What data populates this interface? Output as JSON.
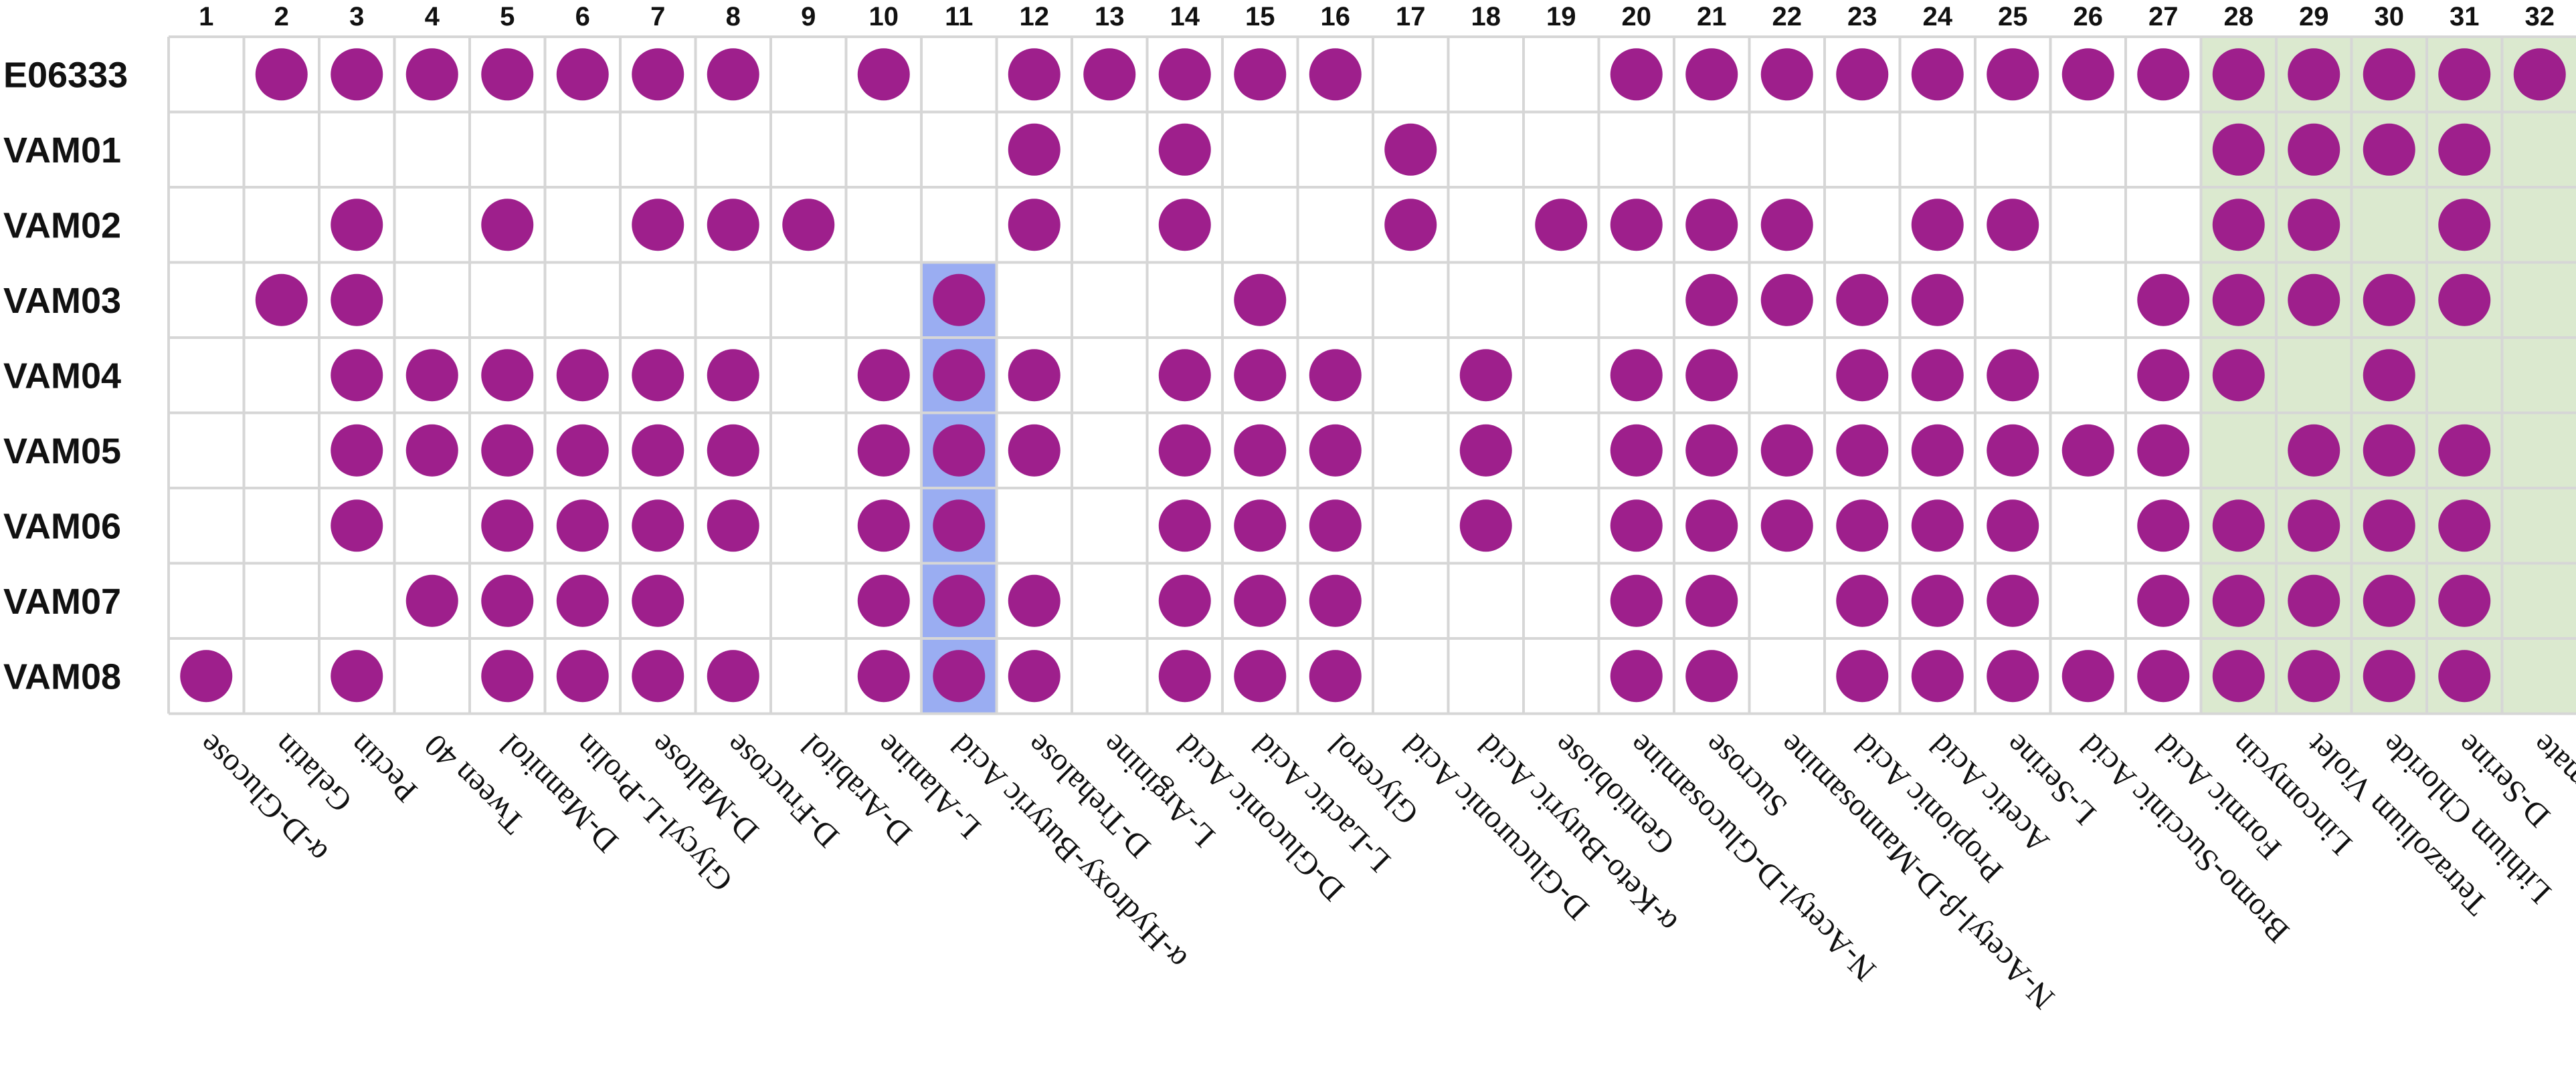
{
  "colors": {
    "dot": "#9e1f8c",
    "grid": "#d6d6d6",
    "column_highlight": "#9aadf2",
    "region_highlight": "#dbe9cf",
    "text": "#111111"
  },
  "chart_data": {
    "type": "table",
    "title": "",
    "column_numbers": [
      "1",
      "2",
      "3",
      "4",
      "5",
      "6",
      "7",
      "8",
      "9",
      "10",
      "11",
      "12",
      "13",
      "14",
      "15",
      "16",
      "17",
      "18",
      "19",
      "20",
      "21",
      "22",
      "23",
      "24",
      "25",
      "26",
      "27",
      "28",
      "29",
      "30",
      "31",
      "32"
    ],
    "substrates": [
      "α-D-Glucose",
      "Gelatin",
      "Pectin",
      "Tween 40",
      "D-Mannitol",
      "Glycyl-L-Prolin",
      "D-Maltose",
      "D-Fructose",
      "D-Arabitol",
      "L-Alanine",
      "α-Hydroxy-Butyric Acid",
      "D-Trehalose",
      "L-Arginine",
      "D-Gluconic Acid",
      "L-Lactic Acid",
      "Glycerol",
      "D-Glucuronic Acid",
      "α-Keto-Butyric Acid",
      "Gentiobiose",
      "N-Acetyl-D-Glucosamine",
      "Sucrose",
      "N-Acetyl-β-D-Mannosamine",
      "Propionic Acid",
      "Acetic Acid",
      "L-Serine",
      "Bromo-Succinic Acid",
      "Formic Acid",
      "Lincomycin",
      "Tetrazolium Violet",
      "Lithium Chloride",
      "D-Serine",
      "Sodium Bromate"
    ],
    "strains": [
      {
        "name": "E06333",
        "positive": [
          2,
          3,
          4,
          5,
          6,
          7,
          8,
          10,
          12,
          13,
          14,
          15,
          16,
          20,
          21,
          22,
          23,
          24,
          25,
          26,
          27,
          28,
          29,
          30,
          31,
          32
        ]
      },
      {
        "name": "VAM01",
        "positive": [
          12,
          14,
          17,
          28,
          29,
          30,
          31
        ]
      },
      {
        "name": "VAM02",
        "positive": [
          3,
          5,
          7,
          8,
          9,
          12,
          14,
          17,
          19,
          20,
          21,
          22,
          24,
          25,
          28,
          29,
          31
        ]
      },
      {
        "name": "VAM03",
        "positive": [
          2,
          3,
          11,
          15,
          21,
          22,
          23,
          24,
          27,
          28,
          29,
          30,
          31
        ]
      },
      {
        "name": "VAM04",
        "positive": [
          3,
          4,
          5,
          6,
          7,
          8,
          10,
          11,
          12,
          14,
          15,
          16,
          18,
          20,
          21,
          23,
          24,
          25,
          27,
          28,
          30
        ]
      },
      {
        "name": "VAM05",
        "positive": [
          3,
          4,
          5,
          6,
          7,
          8,
          10,
          11,
          12,
          14,
          15,
          16,
          18,
          20,
          21,
          22,
          23,
          24,
          25,
          26,
          27,
          29,
          30,
          31
        ]
      },
      {
        "name": "VAM06",
        "positive": [
          3,
          5,
          6,
          7,
          8,
          10,
          11,
          14,
          15,
          16,
          18,
          20,
          21,
          22,
          23,
          24,
          25,
          27,
          28,
          29,
          30,
          31
        ]
      },
      {
        "name": "VAM07",
        "positive": [
          4,
          5,
          6,
          7,
          10,
          11,
          12,
          14,
          15,
          16,
          20,
          21,
          23,
          24,
          25,
          27,
          28,
          29,
          30,
          31
        ]
      },
      {
        "name": "VAM08",
        "positive": [
          1,
          3,
          5,
          6,
          7,
          8,
          10,
          11,
          12,
          14,
          15,
          16,
          20,
          21,
          23,
          24,
          25,
          26,
          27,
          28,
          29,
          30,
          31
        ]
      }
    ],
    "highlighted_column": 11,
    "highlighted_column_rows": [
      "VAM03",
      "VAM04",
      "VAM05",
      "VAM06",
      "VAM07",
      "VAM08"
    ],
    "highlighted_columns_region": [
      28,
      29,
      30,
      31,
      32
    ]
  }
}
